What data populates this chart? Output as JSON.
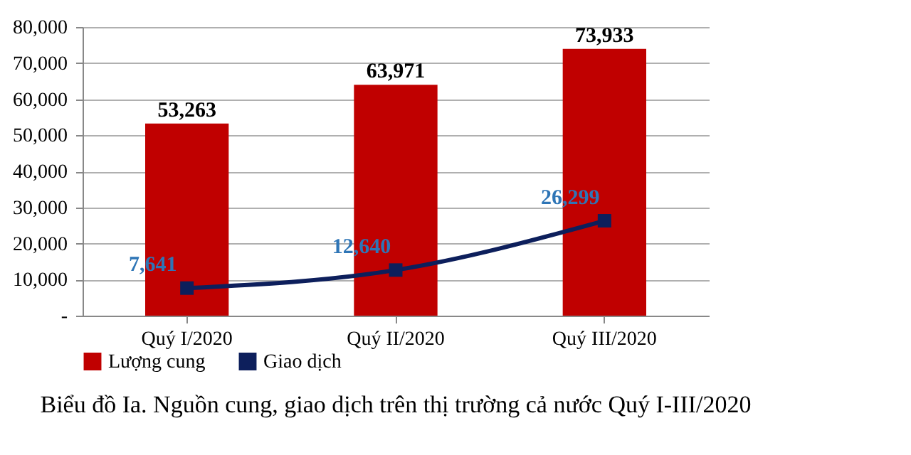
{
  "chart_data": {
    "type": "bar",
    "title": "Biểu đồ Ia. Nguồn cung, giao dịch trên thị trường cả nước Quý I-III/2020",
    "categories": [
      "Quý I/2020",
      "Quý II/2020",
      "Quý III/2020"
    ],
    "series": [
      {
        "name": "Lượng cung",
        "color": "#c00000",
        "values": [
          53263,
          63971,
          73933
        ],
        "value_labels": [
          "53,263",
          "63,971",
          "73,933"
        ]
      },
      {
        "name": "Giao dịch",
        "type": "line",
        "color": "#0d1f5c",
        "values": [
          7641,
          12640,
          26299
        ],
        "value_labels": [
          "7,641",
          "12,640",
          "26,299"
        ],
        "marker": "square"
      }
    ],
    "ylim": [
      0,
      80000
    ],
    "yticks": [
      {
        "value": 0,
        "label": "-"
      },
      {
        "value": 10000,
        "label": "10,000"
      },
      {
        "value": 20000,
        "label": "20,000"
      },
      {
        "value": 30000,
        "label": "30,000"
      },
      {
        "value": 40000,
        "label": "40,000"
      },
      {
        "value": 50000,
        "label": "50,000"
      },
      {
        "value": 60000,
        "label": "60,000"
      },
      {
        "value": 70000,
        "label": "70,000"
      },
      {
        "value": 80000,
        "label": "80,000"
      }
    ],
    "grid": "y",
    "legend": "bottom"
  }
}
